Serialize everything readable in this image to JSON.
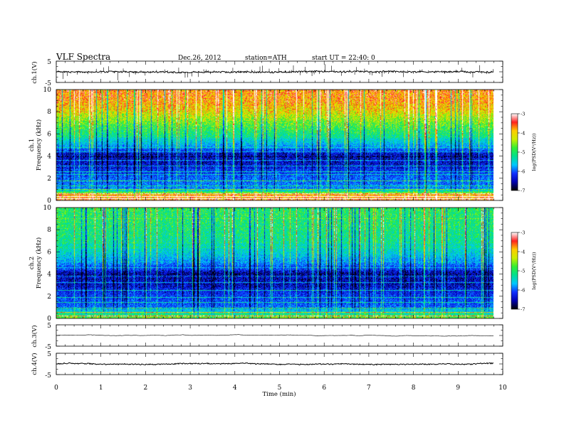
{
  "header": {
    "title": "VLF  Spectra",
    "date": "Dec.26, 2012",
    "station": "station=ATH",
    "start": "start  UT  =   22:40: 0"
  },
  "chart_data": [
    {
      "type": "line",
      "id": "ch1-waveform",
      "ylabel": "ch.1(V)",
      "ylim": [
        -5,
        5
      ],
      "yticks": [
        "5",
        "-5"
      ],
      "xlim": [
        0,
        10
      ],
      "data_extent_min": 9.8,
      "baseline": 0.0,
      "noise_amplitude": 0.35,
      "spike_density": "high"
    },
    {
      "type": "heatmap",
      "id": "ch1-spectrogram",
      "ylabel": "ch.1\nFrequency  (kHz)",
      "ylabel_top": "ch.1",
      "ylabel_main": "Frequency  (kHz)",
      "ylim": [
        0,
        10
      ],
      "yticks": [
        "0",
        "2",
        "4",
        "6",
        "8",
        "10"
      ],
      "xlim": [
        0,
        10
      ],
      "data_extent_min": 9.8,
      "colorbar": {
        "label": "log(PSD(V²/Hz))",
        "range": [
          -7,
          -3
        ],
        "ticks": [
          "-3",
          "-4",
          "-5",
          "-6",
          "-7"
        ],
        "colors": [
          "#000000",
          "#0000b0",
          "#1030ff",
          "#00c8ff",
          "#00e090",
          "#33ee33",
          "#ccee00",
          "#ffcc00",
          "#ff2020",
          "#ffffff"
        ]
      },
      "intensity_profile_kHz": [
        {
          "f": 0.0,
          "level": -3.5
        },
        {
          "f": 0.5,
          "level": -3.8
        },
        {
          "f": 1.0,
          "level": -5.8
        },
        {
          "f": 2.0,
          "level": -6.0
        },
        {
          "f": 3.0,
          "level": -6.4
        },
        {
          "f": 4.0,
          "level": -6.7
        },
        {
          "f": 5.0,
          "level": -5.6
        },
        {
          "f": 6.0,
          "level": -4.9
        },
        {
          "f": 7.0,
          "level": -4.5
        },
        {
          "f": 8.0,
          "level": -4.0
        },
        {
          "f": 9.0,
          "level": -3.7
        },
        {
          "f": 10.0,
          "level": -3.6
        }
      ],
      "narrowband_lines_kHz": [
        0.15,
        0.35,
        0.6,
        1.0,
        1.3,
        1.75,
        2.3,
        2.6,
        3.1,
        3.6,
        4.4,
        4.8
      ],
      "sferic_impulses": "frequent broadband vertical streaks"
    },
    {
      "type": "heatmap",
      "id": "ch2-spectrogram",
      "ylabel": "ch.2\nFrequency  (kHz)",
      "ylabel_top": "ch.2",
      "ylabel_main": "Frequency  (kHz)",
      "ylim": [
        0,
        10
      ],
      "yticks": [
        "0",
        "2",
        "4",
        "6",
        "8",
        "10"
      ],
      "xlim": [
        0,
        10
      ],
      "data_extent_min": 9.8,
      "colorbar": {
        "label": "log(PSD(V²/Hz))",
        "range": [
          -7,
          -3
        ],
        "ticks": [
          "-3",
          "-4",
          "-5",
          "-6",
          "-7"
        ],
        "colors": [
          "#000000",
          "#0000b0",
          "#1030ff",
          "#00c8ff",
          "#00e090",
          "#33ee33",
          "#ccee00",
          "#ffcc00",
          "#ff2020",
          "#ffffff"
        ]
      },
      "intensity_profile_kHz": [
        {
          "f": 0.0,
          "level": -4.4
        },
        {
          "f": 0.5,
          "level": -5.2
        },
        {
          "f": 1.0,
          "level": -6.0
        },
        {
          "f": 2.0,
          "level": -6.2
        },
        {
          "f": 3.0,
          "level": -6.5
        },
        {
          "f": 4.0,
          "level": -6.7
        },
        {
          "f": 5.0,
          "level": -5.8
        },
        {
          "f": 6.0,
          "level": -5.3
        },
        {
          "f": 7.0,
          "level": -5.0
        },
        {
          "f": 8.0,
          "level": -4.9
        },
        {
          "f": 9.0,
          "level": -4.8
        },
        {
          "f": 10.0,
          "level": -4.8
        }
      ],
      "narrowband_lines_kHz": [
        0.2,
        0.5,
        0.9,
        1.4,
        1.9,
        2.5,
        3.2,
        3.8,
        4.6
      ],
      "sferic_impulses": "frequent vertical streaks, green dominant above 5 kHz"
    },
    {
      "type": "line",
      "id": "ch3-waveform",
      "ylabel": "ch.3(V)",
      "ylim": [
        -5,
        5
      ],
      "yticks": [
        "5",
        "-5"
      ],
      "xlim": [
        0,
        10
      ],
      "data_extent_min": 9.8,
      "baseline": 0.0,
      "noise_amplitude": 0.03,
      "spike_density": "none"
    },
    {
      "type": "line",
      "id": "ch4-waveform",
      "ylabel": "ch.4(V)",
      "ylim": [
        -5,
        5
      ],
      "yticks": [
        "5",
        "-5"
      ],
      "xlim": [
        0,
        10
      ],
      "data_extent_min": 9.8,
      "baseline": 0.0,
      "noise_amplitude": 0.25,
      "spike_density": "none"
    }
  ],
  "x_axis": {
    "label": "Time  (min)",
    "ticks": [
      "0",
      "1",
      "2",
      "3",
      "4",
      "5",
      "6",
      "7",
      "8",
      "9",
      "10"
    ],
    "range": [
      0,
      10
    ]
  }
}
